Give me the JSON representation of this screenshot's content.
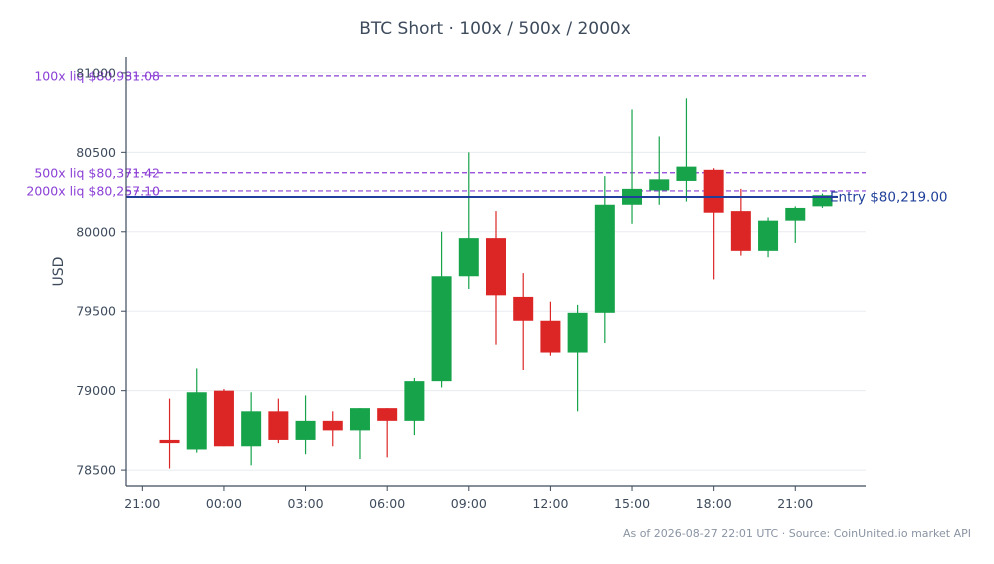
{
  "chart_data": {
    "type": "candlestick",
    "title": "BTC Short · 100x / 500x / 2000x",
    "ylabel": "USD",
    "ylim": [
      78400,
      81100
    ],
    "yticks": [
      78500,
      79000,
      79500,
      80000,
      80500,
      81000
    ],
    "xticks": [
      "21:00",
      "00:00",
      "03:00",
      "06:00",
      "09:00",
      "12:00",
      "15:00",
      "18:00",
      "21:00"
    ],
    "x_range_hours": [
      -0.6,
      26.6
    ],
    "grid": "horizontal",
    "colors": {
      "up": "#16a34a",
      "down": "#dc2626",
      "liq": "#8b3fd6",
      "entry": "#1f3f9a",
      "axis": "#3d4b5c"
    },
    "candles": [
      {
        "t": 1,
        "o": 78690,
        "h": 78950,
        "l": 78510,
        "c": 78670
      },
      {
        "t": 2,
        "o": 78630,
        "h": 79140,
        "l": 78610,
        "c": 78990
      },
      {
        "t": 3,
        "o": 79000,
        "h": 79010,
        "l": 78650,
        "c": 78650
      },
      {
        "t": 4,
        "o": 78650,
        "h": 78990,
        "l": 78530,
        "c": 78870
      },
      {
        "t": 5,
        "o": 78870,
        "h": 78950,
        "l": 78670,
        "c": 78690
      },
      {
        "t": 6,
        "o": 78690,
        "h": 78970,
        "l": 78600,
        "c": 78810
      },
      {
        "t": 7,
        "o": 78810,
        "h": 78870,
        "l": 78650,
        "c": 78750
      },
      {
        "t": 8,
        "o": 78750,
        "h": 78890,
        "l": 78570,
        "c": 78890
      },
      {
        "t": 9,
        "o": 78890,
        "h": 78890,
        "l": 78580,
        "c": 78810
      },
      {
        "t": 10,
        "o": 78810,
        "h": 79080,
        "l": 78720,
        "c": 79060
      },
      {
        "t": 11,
        "o": 79060,
        "h": 80000,
        "l": 79020,
        "c": 79720
      },
      {
        "t": 12,
        "o": 79720,
        "h": 80500,
        "l": 79640,
        "c": 79960
      },
      {
        "t": 13,
        "o": 79960,
        "h": 80130,
        "l": 79290,
        "c": 79600
      },
      {
        "t": 14,
        "o": 79590,
        "h": 79740,
        "l": 79130,
        "c": 79440
      },
      {
        "t": 15,
        "o": 79440,
        "h": 79560,
        "l": 79220,
        "c": 79240
      },
      {
        "t": 16,
        "o": 79240,
        "h": 79540,
        "l": 78870,
        "c": 79490
      },
      {
        "t": 17,
        "o": 79490,
        "h": 80350,
        "l": 79300,
        "c": 80170
      },
      {
        "t": 18,
        "o": 80170,
        "h": 80770,
        "l": 80050,
        "c": 80270
      },
      {
        "t": 19,
        "o": 80260,
        "h": 80600,
        "l": 80170,
        "c": 80330
      },
      {
        "t": 20,
        "o": 80320,
        "h": 80840,
        "l": 80190,
        "c": 80410
      },
      {
        "t": 21,
        "o": 80390,
        "h": 80400,
        "l": 79700,
        "c": 80120
      },
      {
        "t": 22,
        "o": 80130,
        "h": 80270,
        "l": 79850,
        "c": 79880
      },
      {
        "t": 23,
        "o": 79880,
        "h": 80090,
        "l": 79840,
        "c": 80070
      },
      {
        "t": 24,
        "o": 80070,
        "h": 80160,
        "l": 79930,
        "c": 80150
      },
      {
        "t": 25,
        "o": 80160,
        "h": 80240,
        "l": 80150,
        "c": 80230
      }
    ],
    "levels": [
      {
        "label": "100x liq $80,981.08",
        "value": 80981.08,
        "style": "dashed"
      },
      {
        "label": "500x liq $80,371.42",
        "value": 80371.42,
        "style": "dashed"
      },
      {
        "label": "2000x liq $80,257.10",
        "value": 80257.1,
        "style": "dashed"
      }
    ],
    "entry": {
      "label": "Entry $80,219.00",
      "value": 80219.0
    }
  },
  "footer": {
    "note": "As of 2026-08-27 22:01 UTC · Source: CoinUnited.io market API"
  }
}
